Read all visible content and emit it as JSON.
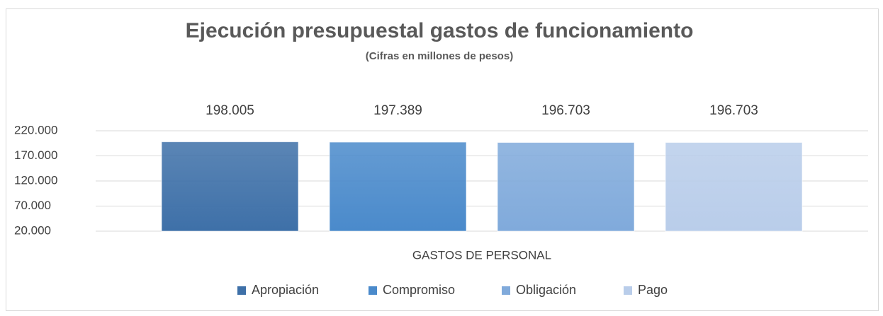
{
  "chart_data": {
    "type": "bar",
    "title": "Ejecución presupuestal gastos de funcionamiento",
    "subtitle": "(Cifras en millones de pesos)",
    "categories": [
      "GASTOS DE PERSONAL"
    ],
    "series": [
      {
        "name": "Apropiación",
        "color": "#3e70a8",
        "values": [
          198005
        ],
        "value_labels": [
          "198.005"
        ]
      },
      {
        "name": "Compromiso",
        "color": "#4a8acb",
        "values": [
          197389
        ],
        "value_labels": [
          "197.389"
        ]
      },
      {
        "name": "Obligación",
        "color": "#80aadb",
        "values": [
          196703
        ],
        "value_labels": [
          "196.703"
        ]
      },
      {
        "name": "Pago",
        "color": "#b9cdea",
        "values": [
          196703
        ],
        "value_labels": [
          "196.703"
        ]
      }
    ],
    "ylim": [
      20000,
      220000
    ],
    "yticks": [
      {
        "value": 20000,
        "label": "20.000"
      },
      {
        "value": 70000,
        "label": "70.000"
      },
      {
        "value": 120000,
        "label": "120.000"
      },
      {
        "value": 170000,
        "label": "170.000"
      },
      {
        "value": 220000,
        "label": "220.000"
      }
    ],
    "grid": true,
    "legend": "bottom"
  }
}
